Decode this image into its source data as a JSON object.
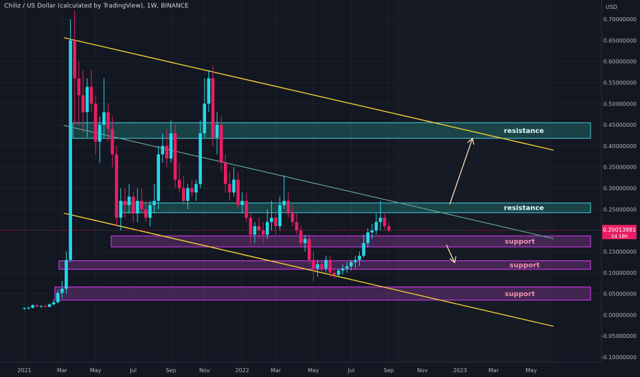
{
  "header": {
    "title": "Chiliz / US Dollar (calculated by TradingView), 1W, BINANCE"
  },
  "chart_data": {
    "type": "candlestick",
    "currency_label": "USD",
    "ylim": [
      -0.11,
      0.72
    ],
    "y_ticks": [
      {
        "value": 0.7,
        "label": "0.70000000"
      },
      {
        "value": 0.65,
        "label": "0.65000000"
      },
      {
        "value": 0.6,
        "label": "0.60000000"
      },
      {
        "value": 0.55,
        "label": "0.55000000"
      },
      {
        "value": 0.5,
        "label": "0.50000000"
      },
      {
        "value": 0.45,
        "label": "0.45000000"
      },
      {
        "value": 0.4,
        "label": "0.40000000"
      },
      {
        "value": 0.35,
        "label": "0.35000000"
      },
      {
        "value": 0.3,
        "label": "0.30000000"
      },
      {
        "value": 0.25,
        "label": "0.25000000"
      },
      {
        "value": 0.15,
        "label": "0.15000000"
      },
      {
        "value": 0.1,
        "label": "0.10000000"
      },
      {
        "value": 0.05,
        "label": "0.05000000"
      },
      {
        "value": 0.0,
        "label": "0.00000000"
      },
      {
        "value": -0.05,
        "label": "-0.05000000"
      },
      {
        "value": -0.1,
        "label": "-0.10000000"
      }
    ],
    "x_ticks": [
      {
        "week": 0,
        "label": "2021"
      },
      {
        "week": 9,
        "label": "Mar"
      },
      {
        "week": 17,
        "label": "May"
      },
      {
        "week": 26,
        "label": "Jul"
      },
      {
        "week": 35,
        "label": "Sep"
      },
      {
        "week": 43,
        "label": "Nov"
      },
      {
        "week": 52,
        "label": "2022"
      },
      {
        "week": 60,
        "label": "Mar"
      },
      {
        "week": 69,
        "label": "May"
      },
      {
        "week": 78,
        "label": "Jul"
      },
      {
        "week": 87,
        "label": "Sep"
      },
      {
        "week": 95,
        "label": "Nov"
      },
      {
        "week": 104,
        "label": "2023"
      },
      {
        "week": 112,
        "label": "Mar"
      },
      {
        "week": 121,
        "label": "May"
      }
    ],
    "current_price": {
      "value": 0.20013881,
      "label": "0.20013881",
      "countdown": "1d 16h"
    },
    "colors": {
      "up": "#26d8e8",
      "down": "#e91e63",
      "zone_resistance": "#26a69a",
      "zone_support": "#ab47bc",
      "channel": "#f5d033"
    },
    "candles": [
      [
        0.015,
        0.018,
        0.012,
        0.016
      ],
      [
        0.016,
        0.02,
        0.013,
        0.017
      ],
      [
        0.017,
        0.025,
        0.015,
        0.023
      ],
      [
        0.023,
        0.026,
        0.018,
        0.02
      ],
      [
        0.02,
        0.023,
        0.017,
        0.021
      ],
      [
        0.021,
        0.024,
        0.018,
        0.019
      ],
      [
        0.019,
        0.027,
        0.018,
        0.025
      ],
      [
        0.025,
        0.036,
        0.022,
        0.03
      ],
      [
        0.03,
        0.06,
        0.027,
        0.052
      ],
      [
        0.052,
        0.08,
        0.04,
        0.062
      ],
      [
        0.062,
        0.15,
        0.05,
        0.13
      ],
      [
        0.13,
        0.7,
        0.125,
        0.65
      ],
      [
        0.65,
        0.72,
        0.45,
        0.56
      ],
      [
        0.56,
        0.6,
        0.45,
        0.52
      ],
      [
        0.52,
        0.58,
        0.43,
        0.48
      ],
      [
        0.48,
        0.56,
        0.42,
        0.54
      ],
      [
        0.54,
        0.58,
        0.48,
        0.5
      ],
      [
        0.5,
        0.52,
        0.38,
        0.41
      ],
      [
        0.41,
        0.47,
        0.36,
        0.45
      ],
      [
        0.45,
        0.56,
        0.42,
        0.48
      ],
      [
        0.48,
        0.5,
        0.41,
        0.44
      ],
      [
        0.44,
        0.47,
        0.35,
        0.38
      ],
      [
        0.38,
        0.4,
        0.21,
        0.23
      ],
      [
        0.23,
        0.3,
        0.2,
        0.27
      ],
      [
        0.27,
        0.3,
        0.23,
        0.26
      ],
      [
        0.26,
        0.31,
        0.24,
        0.28
      ],
      [
        0.28,
        0.29,
        0.22,
        0.24
      ],
      [
        0.24,
        0.3,
        0.22,
        0.27
      ],
      [
        0.27,
        0.3,
        0.24,
        0.25
      ],
      [
        0.25,
        0.27,
        0.22,
        0.23
      ],
      [
        0.23,
        0.27,
        0.21,
        0.26
      ],
      [
        0.26,
        0.31,
        0.24,
        0.27
      ],
      [
        0.27,
        0.4,
        0.25,
        0.38
      ],
      [
        0.38,
        0.43,
        0.36,
        0.4
      ],
      [
        0.4,
        0.44,
        0.35,
        0.37
      ],
      [
        0.37,
        0.46,
        0.36,
        0.43
      ],
      [
        0.43,
        0.45,
        0.3,
        0.32
      ],
      [
        0.32,
        0.36,
        0.29,
        0.3
      ],
      [
        0.3,
        0.33,
        0.26,
        0.27
      ],
      [
        0.27,
        0.31,
        0.25,
        0.3
      ],
      [
        0.3,
        0.32,
        0.28,
        0.29
      ],
      [
        0.29,
        0.32,
        0.27,
        0.31
      ],
      [
        0.31,
        0.46,
        0.3,
        0.43
      ],
      [
        0.43,
        0.56,
        0.42,
        0.5
      ],
      [
        0.5,
        0.58,
        0.48,
        0.56
      ],
      [
        0.56,
        0.59,
        0.4,
        0.42
      ],
      [
        0.42,
        0.48,
        0.38,
        0.45
      ],
      [
        0.45,
        0.47,
        0.34,
        0.36
      ],
      [
        0.36,
        0.38,
        0.29,
        0.31
      ],
      [
        0.31,
        0.34,
        0.27,
        0.29
      ],
      [
        0.29,
        0.35,
        0.28,
        0.32
      ],
      [
        0.32,
        0.34,
        0.25,
        0.26
      ],
      [
        0.26,
        0.29,
        0.24,
        0.27
      ],
      [
        0.27,
        0.29,
        0.22,
        0.23
      ],
      [
        0.23,
        0.24,
        0.17,
        0.19
      ],
      [
        0.19,
        0.22,
        0.17,
        0.21
      ],
      [
        0.21,
        0.23,
        0.18,
        0.2
      ],
      [
        0.2,
        0.22,
        0.17,
        0.19
      ],
      [
        0.19,
        0.25,
        0.18,
        0.22
      ],
      [
        0.22,
        0.27,
        0.2,
        0.23
      ],
      [
        0.23,
        0.24,
        0.19,
        0.21
      ],
      [
        0.21,
        0.28,
        0.2,
        0.26
      ],
      [
        0.26,
        0.33,
        0.25,
        0.27
      ],
      [
        0.27,
        0.29,
        0.23,
        0.24
      ],
      [
        0.24,
        0.26,
        0.21,
        0.22
      ],
      [
        0.22,
        0.24,
        0.19,
        0.2
      ],
      [
        0.2,
        0.21,
        0.16,
        0.17
      ],
      [
        0.17,
        0.19,
        0.15,
        0.18
      ],
      [
        0.18,
        0.19,
        0.12,
        0.13
      ],
      [
        0.13,
        0.15,
        0.08,
        0.11
      ],
      [
        0.11,
        0.13,
        0.09,
        0.12
      ],
      [
        0.12,
        0.13,
        0.1,
        0.11
      ],
      [
        0.11,
        0.14,
        0.1,
        0.13
      ],
      [
        0.13,
        0.14,
        0.09,
        0.1
      ],
      [
        0.1,
        0.11,
        0.085,
        0.095
      ],
      [
        0.095,
        0.11,
        0.09,
        0.105
      ],
      [
        0.105,
        0.12,
        0.095,
        0.11
      ],
      [
        0.11,
        0.125,
        0.1,
        0.115
      ],
      [
        0.115,
        0.13,
        0.105,
        0.125
      ],
      [
        0.125,
        0.14,
        0.11,
        0.13
      ],
      [
        0.13,
        0.15,
        0.115,
        0.14
      ],
      [
        0.14,
        0.19,
        0.135,
        0.17
      ],
      [
        0.17,
        0.205,
        0.16,
        0.195
      ],
      [
        0.195,
        0.215,
        0.18,
        0.2
      ],
      [
        0.2,
        0.24,
        0.19,
        0.22
      ],
      [
        0.22,
        0.27,
        0.2,
        0.23
      ],
      [
        0.23,
        0.24,
        0.2,
        0.21
      ],
      [
        0.21,
        0.22,
        0.195,
        0.2
      ]
    ]
  },
  "annotations": {
    "zones": [
      {
        "label": "resistance",
        "top": 0.455,
        "bottom": 0.418
      },
      {
        "label": "resistance",
        "top": 0.265,
        "bottom": 0.242
      },
      {
        "label": "support",
        "top": 0.187,
        "bottom": 0.161
      },
      {
        "label": "support",
        "top": 0.128,
        "bottom": 0.108
      },
      {
        "label": "support",
        "top": 0.066,
        "bottom": 0.035
      }
    ]
  }
}
